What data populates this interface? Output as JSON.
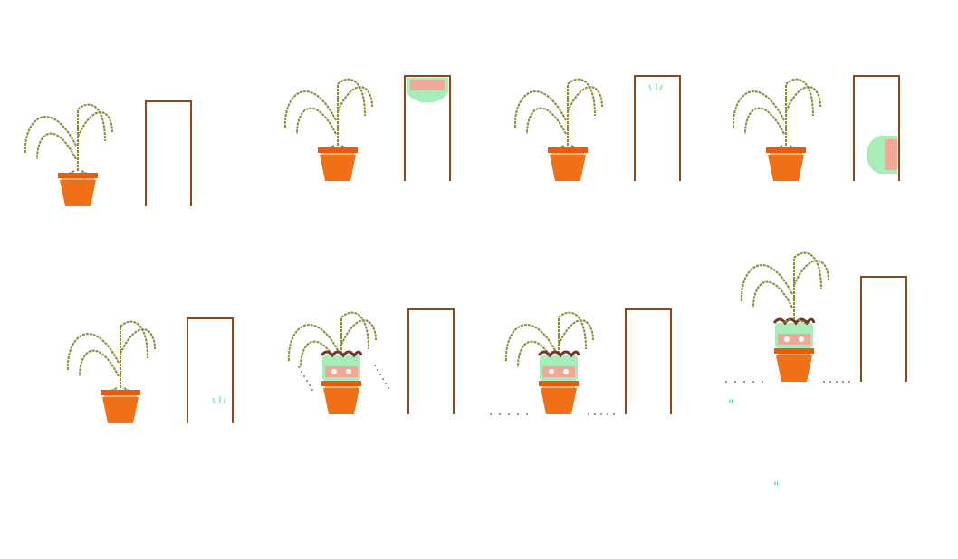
{
  "sprite_sheet": {
    "colors": {
      "background": "#ffffff",
      "stem": "#8a8a3a",
      "pot": "#f07018",
      "pot_rim": "#e85c10",
      "pot_highlight": "#f8b070",
      "doorframe": "#8a4a1c",
      "creature_green": "#a8ecb8",
      "creature_pink": "#f0a898",
      "creature_dark": "#6a3a2a",
      "dust": "#999999",
      "sparkle": "#40d890"
    },
    "frames": [
      {
        "index": 1,
        "creature": "none",
        "dust": "none"
      },
      {
        "index": 2,
        "creature": "peeking-top-of-door",
        "dust": "none"
      },
      {
        "index": 3,
        "creature": "tiny-glimpse-in-door",
        "dust": "none"
      },
      {
        "index": 4,
        "creature": "peeking-side-of-door",
        "dust": "none"
      },
      {
        "index": 5,
        "creature": "tiny-glimpse-low-in-door",
        "dust": "none"
      },
      {
        "index": 6,
        "creature": "hiding-in-pot",
        "dust": "puff"
      },
      {
        "index": 7,
        "creature": "hiding-in-pot",
        "dust": "trail"
      },
      {
        "index": 8,
        "creature": "lifting-plant",
        "dust": "trail"
      }
    ],
    "sparkles": [
      {
        "label": "\""
      },
      {
        "label": "\""
      }
    ]
  }
}
